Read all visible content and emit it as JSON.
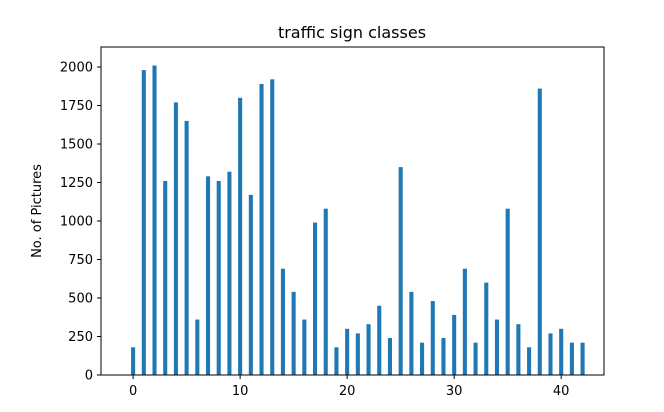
{
  "chart_data": {
    "type": "bar",
    "title": "traffic sign classes",
    "xlabel": "",
    "ylabel": "No. of Pictures",
    "x": [
      0,
      1,
      2,
      3,
      4,
      5,
      6,
      7,
      8,
      9,
      10,
      11,
      12,
      13,
      14,
      15,
      16,
      17,
      18,
      19,
      20,
      21,
      22,
      23,
      24,
      25,
      26,
      27,
      28,
      29,
      30,
      31,
      32,
      33,
      34,
      35,
      36,
      37,
      38,
      39,
      40,
      41,
      42
    ],
    "values": [
      180,
      1980,
      2010,
      1260,
      1770,
      1650,
      360,
      1290,
      1260,
      1320,
      1800,
      1170,
      1890,
      1920,
      690,
      540,
      360,
      990,
      1080,
      180,
      300,
      270,
      330,
      450,
      240,
      1350,
      540,
      210,
      480,
      240,
      390,
      690,
      210,
      600,
      360,
      1080,
      330,
      180,
      1860,
      270,
      300,
      210,
      210
    ],
    "xlim": [
      -3,
      44
    ],
    "ylim": [
      0,
      2130
    ],
    "xticks": [
      0,
      10,
      20,
      30,
      40
    ],
    "yticks": [
      0,
      250,
      500,
      750,
      1000,
      1250,
      1500,
      1750,
      2000
    ],
    "grid": false,
    "bar_color": "#1f77b4"
  }
}
